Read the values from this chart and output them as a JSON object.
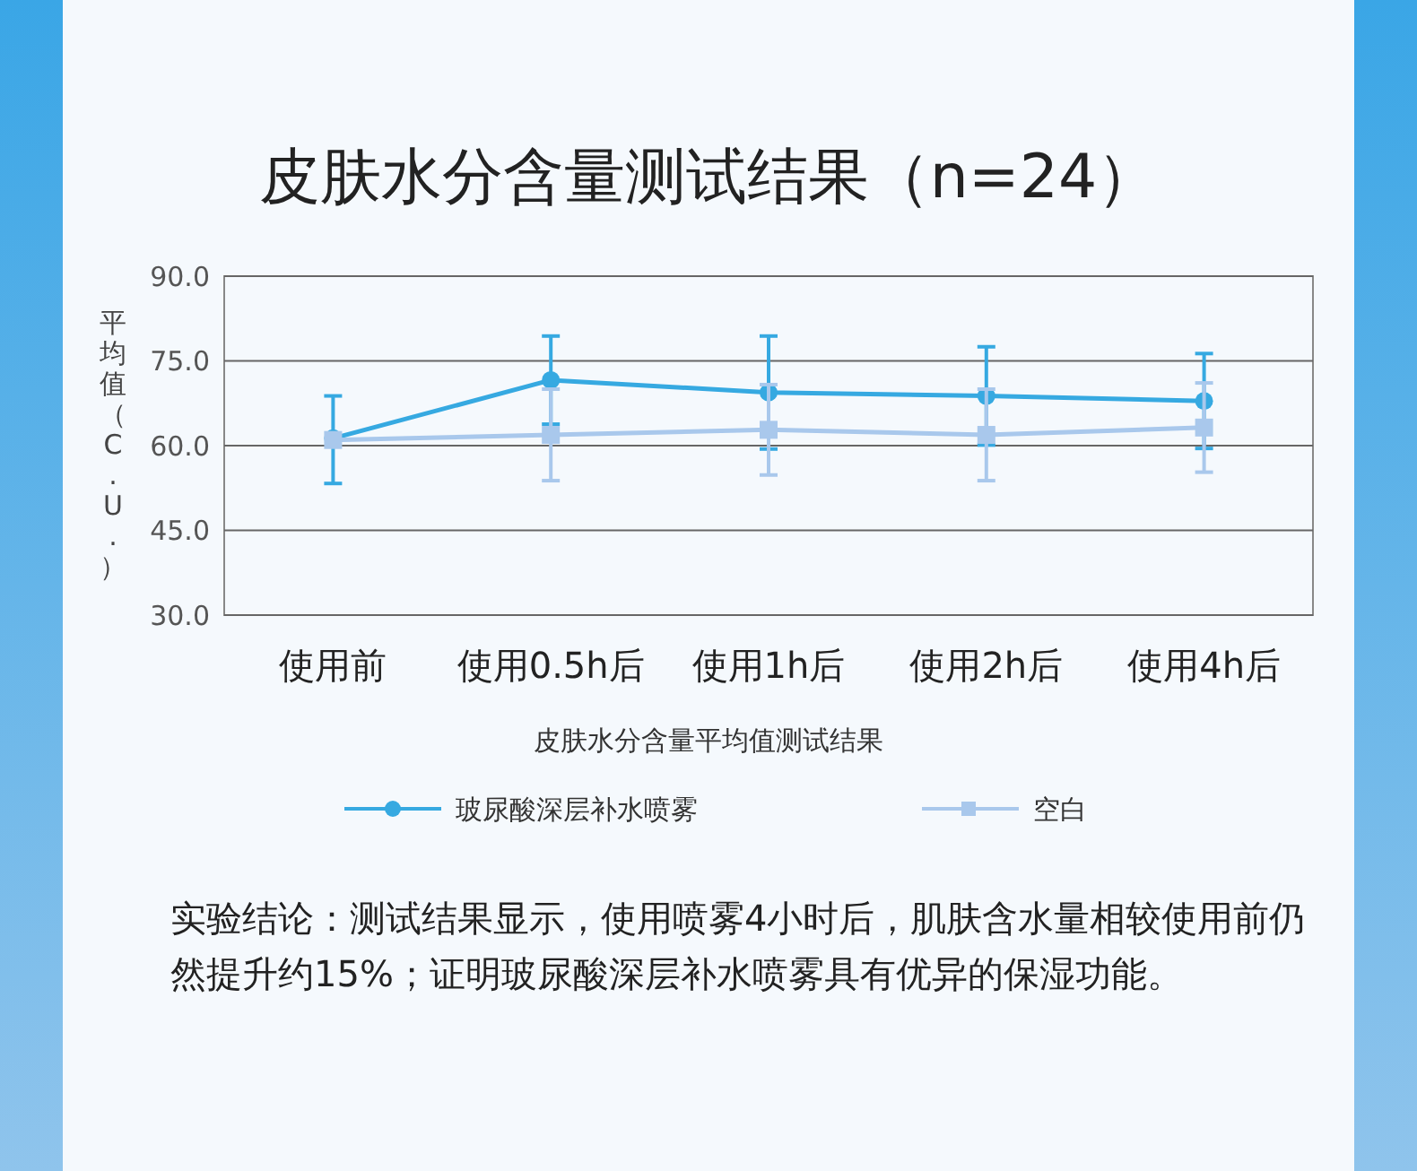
{
  "chart_data": {
    "type": "line",
    "title": "皮肤水分含量测试结果（n=24）",
    "xlabel": "皮肤水分含量平均值测试结果",
    "ylabel": "平均值（C.U.）",
    "categories": [
      "使用前",
      "使用0.5h后",
      "使用1h后",
      "使用2h后",
      "使用4h后"
    ],
    "ylim": [
      30,
      90
    ],
    "yticks": [
      {
        "value": 30,
        "label": "30.0"
      },
      {
        "value": 45,
        "label": "45.0"
      },
      {
        "value": 60,
        "label": "60.0"
      },
      {
        "value": 75,
        "label": "75.0"
      },
      {
        "value": 90,
        "label": "90.0"
      }
    ],
    "grid": "y",
    "legend": "bottom",
    "series": [
      {
        "name": "玻尿酸深层补水喷雾",
        "color": "#36a9e1",
        "marker": "circle",
        "values": [
          61.3,
          71.6,
          69.4,
          68.8,
          67.9
        ],
        "errors": [
          [
            53.3,
            68.8
          ],
          7.8,
          10.0,
          8.7,
          8.4
        ]
      },
      {
        "name": "空白",
        "color": "#a9c8ec",
        "marker": "square",
        "values": [
          61.0,
          61.9,
          62.8,
          61.9,
          63.2
        ],
        "errors": [
          null,
          8.1,
          8.0,
          8.1,
          7.9
        ]
      }
    ],
    "annotations": [
      "实验结论：测试结果显示，使用喷雾4小时后，肌肤含水量相较使用前仍然提升约15%；证明玻尿酸深层补水喷雾具有优异的保湿功能。"
    ]
  }
}
